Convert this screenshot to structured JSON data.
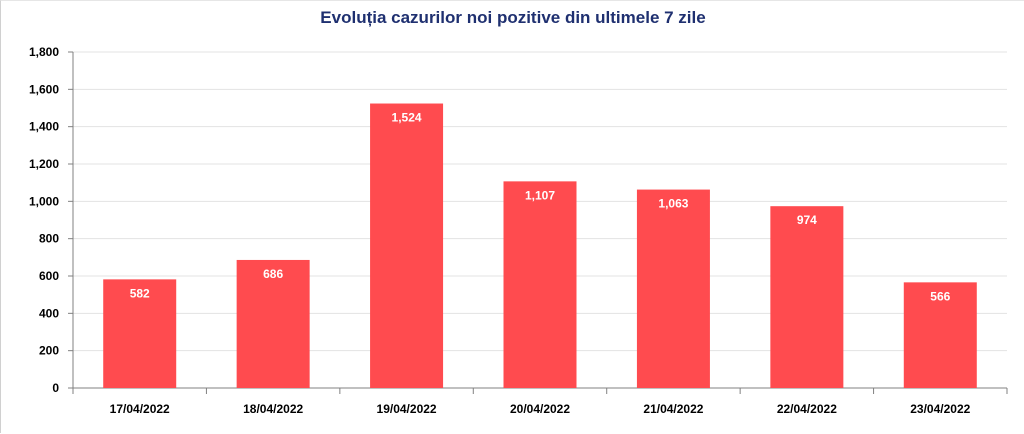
{
  "chart_data": {
    "type": "bar",
    "title": "Evoluția cazurilor noi pozitive din ultimele 7 zile",
    "categories": [
      "17/04/2022",
      "18/04/2022",
      "19/04/2022",
      "20/04/2022",
      "21/04/2022",
      "22/04/2022",
      "23/04/2022"
    ],
    "values": [
      582,
      686,
      1524,
      1107,
      1063,
      974,
      566
    ],
    "value_labels": [
      "582",
      "686",
      "1,524",
      "1,107",
      "1,063",
      "974",
      "566"
    ],
    "yticks": [
      0,
      200,
      400,
      600,
      800,
      1000,
      1200,
      1400,
      1600,
      1800
    ],
    "ytick_labels": [
      "0",
      "200",
      "400",
      "600",
      "800",
      "1,000",
      "1,200",
      "1,400",
      "1,600",
      "1,800"
    ],
    "ylim": [
      0,
      1800
    ],
    "xlabel": "",
    "ylabel": "",
    "grid": true,
    "legend": "none",
    "colors": {
      "bar": "#ff4b4f",
      "title": "#1f3070",
      "grid": "#e3e3e3",
      "axis": "#808080"
    }
  }
}
